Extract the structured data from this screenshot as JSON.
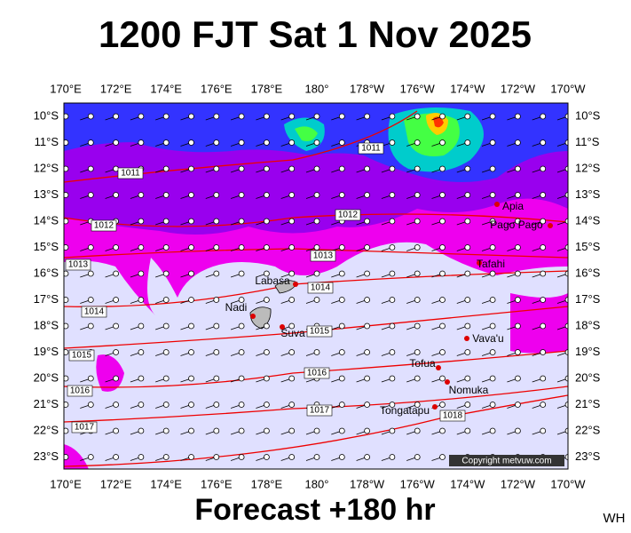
{
  "title": "1200 FJT Sat 1 Nov 2025",
  "footer": "Forecast +180 hr",
  "initials": "WH",
  "copyright": "Copyright metvuw.com",
  "lon_labels": [
    "170°E",
    "172°E",
    "174°E",
    "176°E",
    "178°E",
    "180°",
    "178°W",
    "176°W",
    "174°W",
    "172°W",
    "170°W"
  ],
  "lat_labels": [
    "10°S",
    "11°S",
    "12°S",
    "13°S",
    "14°S",
    "15°S",
    "16°S",
    "17°S",
    "18°S",
    "19°S",
    "20°S",
    "21°S",
    "22°S",
    "23°S"
  ],
  "isobar_labels": [
    "1011",
    "1011",
    "1012",
    "1012",
    "1013",
    "1013",
    "1014",
    "1014",
    "1015",
    "1015",
    "1016",
    "1016",
    "1017",
    "1017",
    "1018"
  ],
  "places": [
    "Labasa",
    "Nadi",
    "Suva",
    "Apia",
    "Pago Pago",
    "Tafahi",
    "Vava'u",
    "Tofua",
    "Nomuka",
    "Tongatapu"
  ]
}
